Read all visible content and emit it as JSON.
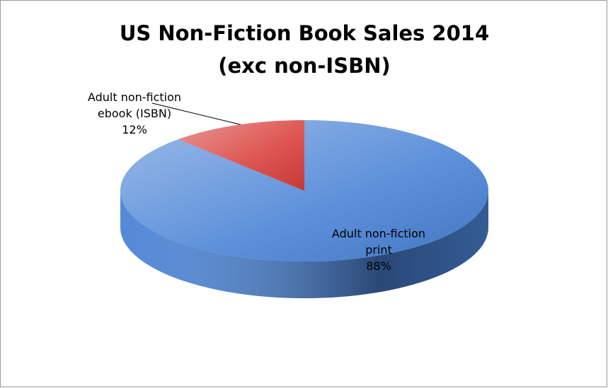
{
  "chart_data": {
    "type": "pie3d",
    "title": [
      "US Non-Fiction Book Sales 2014",
      "(exc non-ISBN)"
    ],
    "categories": [
      "Adult non-fiction ebook (ISBN)",
      "Adult non-fiction print"
    ],
    "values": [
      12,
      88
    ],
    "value_labels": [
      "12%",
      "88%"
    ],
    "colors": [
      "#d9403c",
      "#4a83d6"
    ]
  }
}
